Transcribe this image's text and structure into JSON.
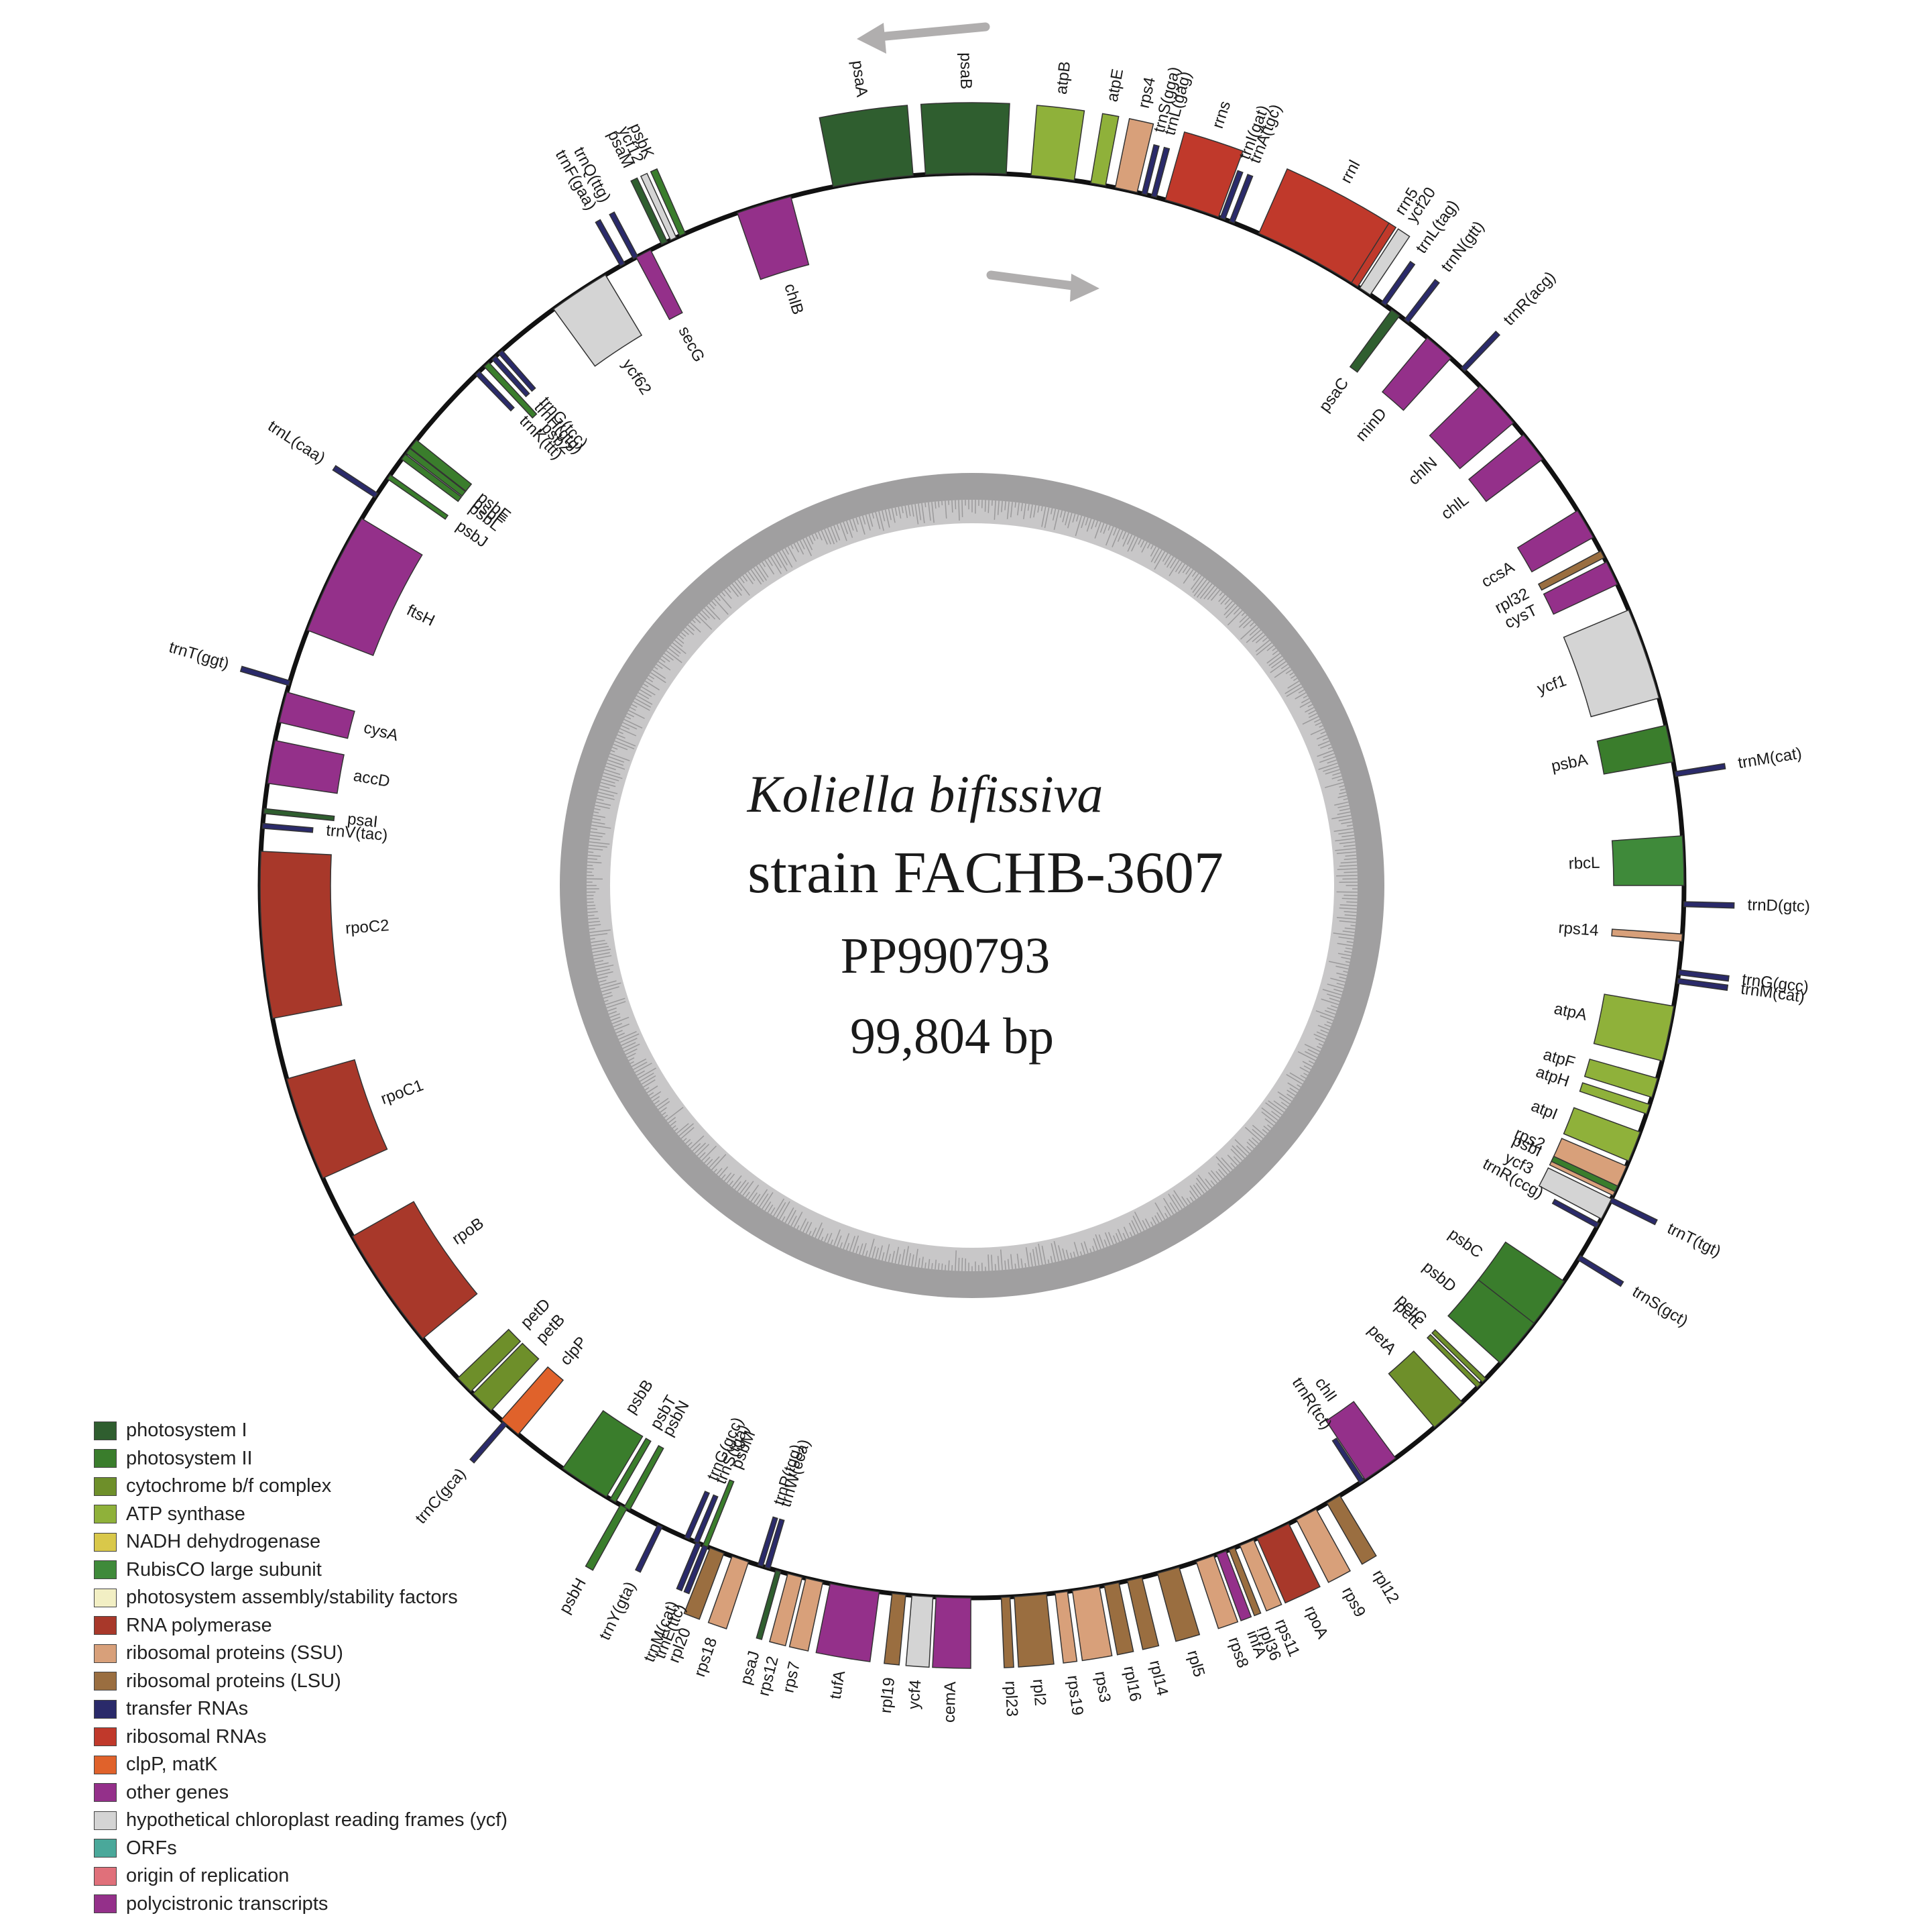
{
  "title": {
    "species": "Koliella bifissiva",
    "strain": "strain FACHB-3607",
    "accession": "PP990793",
    "length": "99,804 bp"
  },
  "colors": {
    "photosystem_I": "#2f5e2f",
    "photosystem_II": "#3a7d2c",
    "cytochrome": "#6e8f2a",
    "atp": "#8fb13a",
    "rubisco": "#3f8a3a",
    "rna_pol": "#a8382a",
    "ssu": "#d8a07a",
    "lsu": "#9a6e40",
    "trna": "#2a2a6a",
    "rrna": "#c0392b",
    "clp": "#e0622b",
    "other": "#94308a",
    "ycf": "#d4d4d4"
  },
  "legend": [
    {
      "label": "photosystem I",
      "color": "#2f5e2f"
    },
    {
      "label": "photosystem II",
      "color": "#3a7d2c"
    },
    {
      "label": "cytochrome b/f complex",
      "color": "#6e8f2a"
    },
    {
      "label": "ATP synthase",
      "color": "#8fb13a"
    },
    {
      "label": "NADH dehydrogenase",
      "color": "#d9c84a"
    },
    {
      "label": "RubisCO large subunit",
      "color": "#3f8a3a"
    },
    {
      "label": "photosystem assembly/stability factors",
      "color": "#f2efc4"
    },
    {
      "label": "RNA polymerase",
      "color": "#a8382a"
    },
    {
      "label": "ribosomal proteins (SSU)",
      "color": "#d8a07a"
    },
    {
      "label": "ribosomal proteins (LSU)",
      "color": "#9a6e40"
    },
    {
      "label": "transfer RNAs",
      "color": "#2a2a6a"
    },
    {
      "label": "ribosomal RNAs",
      "color": "#c0392b"
    },
    {
      "label": "clpP, matK",
      "color": "#e0622b"
    },
    {
      "label": "other genes",
      "color": "#94308a"
    },
    {
      "label": "hypothetical chloroplast reading frames (ycf)",
      "color": "#d4d4d4"
    },
    {
      "label": "ORFs",
      "color": "#4aa89a"
    },
    {
      "label": "origin of replication",
      "color": "#e0707a"
    },
    {
      "label": "polycistronic transcripts",
      "color": "#94308a"
    }
  ],
  "genes": [
    {
      "name": "psbK",
      "a": 336.0,
      "w": 0.5,
      "side": "out",
      "cat": "photosystem_II"
    },
    {
      "name": "ycf12",
      "a": 335.2,
      "w": 0.5,
      "side": "out",
      "cat": "ycf"
    },
    {
      "name": "psaM",
      "a": 334.4,
      "w": 0.5,
      "side": "out",
      "cat": "photosystem_I"
    },
    {
      "name": "trnQ(ttg)",
      "a": 331.8,
      "w": 0.4,
      "side": "out",
      "cat": "trna"
    },
    {
      "name": "trnF(gaa)",
      "a": 330.6,
      "w": 0.4,
      "side": "out",
      "cat": "trna"
    },
    {
      "name": "secG",
      "a": 332.5,
      "w": 1.3,
      "side": "in",
      "cat": "other"
    },
    {
      "name": "ycf62",
      "a": 326.5,
      "w": 5.0,
      "side": "in",
      "cat": "ycf"
    },
    {
      "name": "chlB",
      "a": 343.0,
      "w": 4.5,
      "side": "in",
      "cat": "other"
    },
    {
      "name": "psaA",
      "a": 352.0,
      "w": 6.5,
      "side": "out",
      "cat": "photosystem_I"
    },
    {
      "name": "psaB",
      "a": 359.5,
      "w": 6.5,
      "side": "out",
      "cat": "photosystem_I"
    },
    {
      "name": "atpB",
      "a": 6.5,
      "w": 3.5,
      "side": "out",
      "cat": "atp"
    },
    {
      "name": "atpE",
      "a": 10.2,
      "w": 1.2,
      "side": "out",
      "cat": "atp"
    },
    {
      "name": "rps4",
      "a": 12.5,
      "w": 1.8,
      "side": "out",
      "cat": "ssu"
    },
    {
      "name": "trnS(gga)",
      "a": 14.0,
      "w": 0.4,
      "side": "out",
      "cat": "trna"
    },
    {
      "name": "trnL(gag)",
      "a": 14.8,
      "w": 0.4,
      "side": "out",
      "cat": "trna"
    },
    {
      "name": "rrns",
      "a": 18.0,
      "w": 4.5,
      "side": "out",
      "cat": "rrna"
    },
    {
      "name": "trnI(gat)",
      "a": 20.6,
      "w": 0.4,
      "side": "out",
      "cat": "trna"
    },
    {
      "name": "trnA(tgc)",
      "a": 21.4,
      "w": 0.4,
      "side": "out",
      "cat": "trna"
    },
    {
      "name": "rrnl",
      "a": 28.0,
      "w": 8.5,
      "side": "out",
      "cat": "rrna"
    },
    {
      "name": "rrn5",
      "a": 32.5,
      "w": 0.6,
      "side": "out",
      "cat": "rrna"
    },
    {
      "name": "ycf20",
      "a": 33.5,
      "w": 1.0,
      "side": "out",
      "cat": "ycf"
    },
    {
      "name": "trnL(tag)",
      "a": 35.3,
      "w": 0.4,
      "side": "out",
      "cat": "trna"
    },
    {
      "name": "psaC",
      "a": 36.5,
      "w": 0.8,
      "side": "in",
      "cat": "photosystem_I"
    },
    {
      "name": "trnN(gtt)",
      "a": 37.6,
      "w": 0.4,
      "side": "out",
      "cat": "trna"
    },
    {
      "name": "minD",
      "a": 41.0,
      "w": 2.5,
      "side": "in",
      "cat": "other"
    },
    {
      "name": "trnR(acg)",
      "a": 43.6,
      "w": 0.4,
      "side": "out",
      "cat": "trna"
    },
    {
      "name": "chlN",
      "a": 47.5,
      "w": 4.0,
      "side": "in",
      "cat": "other"
    },
    {
      "name": "chlL",
      "a": 52.0,
      "w": 2.5,
      "side": "in",
      "cat": "other"
    },
    {
      "name": "ccsA",
      "a": 59.5,
      "w": 2.5,
      "side": "in",
      "cat": "other"
    },
    {
      "name": "rpl32",
      "a": 62.3,
      "w": 0.6,
      "side": "in",
      "cat": "lsu"
    },
    {
      "name": "cysT",
      "a": 64.0,
      "w": 2.0,
      "side": "in",
      "cat": "other"
    },
    {
      "name": "ycf1",
      "a": 71.0,
      "w": 7.5,
      "side": "in",
      "cat": "ycf"
    },
    {
      "name": "psbA",
      "a": 78.5,
      "w": 3.0,
      "side": "in",
      "cat": "photosystem_II"
    },
    {
      "name": "trnM(cat)",
      "a": 81.0,
      "w": 0.4,
      "side": "out",
      "cat": "trna"
    },
    {
      "name": "rbcL",
      "a": 88.0,
      "w": 4.0,
      "side": "in",
      "cat": "rubisco"
    },
    {
      "name": "trnD(gtc)",
      "a": 91.5,
      "w": 0.4,
      "side": "out",
      "cat": "trna"
    },
    {
      "name": "rps14",
      "a": 94.2,
      "w": 0.6,
      "side": "in",
      "cat": "ssu"
    },
    {
      "name": "trnG(gcc)",
      "a": 97.0,
      "w": 0.4,
      "side": "out",
      "cat": "trna"
    },
    {
      "name": "trnM(cat)",
      "a": 97.7,
      "w": 0.4,
      "side": "out",
      "cat": "trna"
    },
    {
      "name": "atpA",
      "a": 102.0,
      "w": 4.5,
      "side": "in",
      "cat": "atp"
    },
    {
      "name": "atpF",
      "a": 106.5,
      "w": 1.6,
      "side": "in",
      "cat": "atp"
    },
    {
      "name": "atpH",
      "a": 108.3,
      "w": 0.8,
      "side": "in",
      "cat": "atp"
    },
    {
      "name": "atpI",
      "a": 111.5,
      "w": 2.5,
      "side": "in",
      "cat": "atp"
    },
    {
      "name": "rps2",
      "a": 114.5,
      "w": 2.6,
      "side": "in",
      "cat": "ssu"
    },
    {
      "name": "trnT(tgt)",
      "a": 116.2,
      "w": 0.4,
      "side": "out",
      "cat": "trna"
    },
    {
      "name": "psbI",
      "a": 115.2,
      "w": 0.5,
      "side": "in",
      "cat": "photosystem_II"
    },
    {
      "name": "ycf3",
      "a": 117.0,
      "w": 1.8,
      "side": "in",
      "cat": "ycf"
    },
    {
      "name": "trnR(ccg)",
      "a": 118.5,
      "w": 0.4,
      "side": "in",
      "cat": "trna"
    },
    {
      "name": "trnS(gct)",
      "a": 121.5,
      "w": 0.4,
      "side": "out",
      "cat": "trna"
    },
    {
      "name": "psbC",
      "a": 126.0,
      "w": 4.5,
      "side": "in",
      "cat": "photosystem_II"
    },
    {
      "name": "psbD",
      "a": 130.0,
      "w": 4.2,
      "side": "in",
      "cat": "photosystem_II"
    },
    {
      "name": "petG",
      "a": 134.0,
      "w": 0.4,
      "side": "in",
      "cat": "cytochrome"
    },
    {
      "name": "petL",
      "a": 134.6,
      "w": 0.4,
      "side": "in",
      "cat": "cytochrome"
    },
    {
      "name": "petA",
      "a": 138.0,
      "w": 3.0,
      "side": "in",
      "cat": "cytochrome"
    },
    {
      "name": "chlI",
      "a": 145.0,
      "w": 3.0,
      "side": "in",
      "cat": "other"
    },
    {
      "name": "trnR(tct)",
      "a": 146.8,
      "w": 0.4,
      "side": "in",
      "cat": "trna"
    },
    {
      "name": "rpl12",
      "a": 149.5,
      "w": 1.2,
      "side": "out",
      "cat": "lsu"
    },
    {
      "name": "rps9",
      "a": 152.0,
      "w": 1.8,
      "side": "out",
      "cat": "ssu"
    },
    {
      "name": "rpoA",
      "a": 155.0,
      "w": 2.8,
      "side": "out",
      "cat": "rna_pol"
    },
    {
      "name": "rps11",
      "a": 157.3,
      "w": 1.2,
      "side": "out",
      "cat": "ssu"
    },
    {
      "name": "rpl36",
      "a": 158.6,
      "w": 0.5,
      "side": "out",
      "cat": "lsu"
    },
    {
      "name": "infA",
      "a": 159.5,
      "w": 0.8,
      "side": "out",
      "cat": "other"
    },
    {
      "name": "rps8",
      "a": 160.9,
      "w": 1.5,
      "side": "out",
      "cat": "ssu"
    },
    {
      "name": "rpl5",
      "a": 164.0,
      "w": 1.8,
      "side": "out",
      "cat": "lsu"
    },
    {
      "name": "rpl14",
      "a": 166.8,
      "w": 1.2,
      "side": "out",
      "cat": "lsu"
    },
    {
      "name": "rpl16",
      "a": 168.7,
      "w": 1.2,
      "side": "out",
      "cat": "lsu"
    },
    {
      "name": "rps3",
      "a": 170.8,
      "w": 2.2,
      "side": "out",
      "cat": "ssu"
    },
    {
      "name": "rps19",
      "a": 172.8,
      "w": 1.0,
      "side": "out",
      "cat": "ssu"
    },
    {
      "name": "rpl2",
      "a": 175.3,
      "w": 2.6,
      "side": "out",
      "cat": "lsu"
    },
    {
      "name": "rpl23",
      "a": 177.3,
      "w": 0.7,
      "side": "out",
      "cat": "lsu"
    },
    {
      "name": "cemA",
      "a": 181.5,
      "w": 2.8,
      "side": "out",
      "cat": "other"
    },
    {
      "name": "ycf4",
      "a": 184.0,
      "w": 1.7,
      "side": "out",
      "cat": "ycf"
    },
    {
      "name": "rpl19",
      "a": 185.9,
      "w": 1.1,
      "side": "out",
      "cat": "lsu"
    },
    {
      "name": "tufA",
      "a": 189.5,
      "w": 4.0,
      "side": "out",
      "cat": "other"
    },
    {
      "name": "rps7",
      "a": 192.8,
      "w": 1.4,
      "side": "out",
      "cat": "ssu"
    },
    {
      "name": "rps12",
      "a": 194.4,
      "w": 1.2,
      "side": "out",
      "cat": "ssu"
    },
    {
      "name": "psaJ",
      "a": 195.8,
      "w": 0.4,
      "side": "out",
      "cat": "photosystem_I"
    },
    {
      "name": "rps18",
      "a": 199.0,
      "w": 1.4,
      "side": "out",
      "cat": "ssu"
    },
    {
      "name": "rpl20",
      "a": 201.0,
      "w": 1.2,
      "side": "out",
      "cat": "lsu"
    },
    {
      "name": "trnE(ttc)",
      "a": 202.0,
      "w": 0.4,
      "side": "out",
      "cat": "trna"
    },
    {
      "name": "trnM(cat)",
      "a": 202.6,
      "w": 0.4,
      "side": "out",
      "cat": "trna"
    },
    {
      "name": "trnW(cca)",
      "a": 196.7,
      "w": 0.4,
      "side": "in",
      "cat": "trna"
    },
    {
      "name": "trnP(tgg)",
      "a": 197.3,
      "w": 0.4,
      "side": "in",
      "cat": "trna"
    },
    {
      "name": "psbM",
      "a": 202.0,
      "w": 0.4,
      "side": "in",
      "cat": "photosystem_II"
    },
    {
      "name": "trnS(tga)",
      "a": 202.8,
      "w": 0.4,
      "side": "in",
      "cat": "trna"
    },
    {
      "name": "trnG(gcc)",
      "a": 203.6,
      "w": 0.4,
      "side": "in",
      "cat": "trna"
    },
    {
      "name": "trnY(gta)",
      "a": 206.0,
      "w": 0.4,
      "side": "out",
      "cat": "trna"
    },
    {
      "name": "psbN",
      "a": 209.0,
      "w": 0.5,
      "side": "in",
      "cat": "photosystem_II"
    },
    {
      "name": "psbH",
      "a": 209.3,
      "w": 0.6,
      "side": "out",
      "cat": "photosystem_II"
    },
    {
      "name": "psbT",
      "a": 210.3,
      "w": 0.5,
      "side": "in",
      "cat": "photosystem_II"
    },
    {
      "name": "psbB",
      "a": 213.0,
      "w": 4.2,
      "side": "in",
      "cat": "photosystem_II"
    },
    {
      "name": "trnC(gca)",
      "a": 221.0,
      "w": 0.4,
      "side": "out",
      "cat": "trna"
    },
    {
      "name": "clpP",
      "a": 220.5,
      "w": 1.8,
      "side": "in",
      "cat": "clp"
    },
    {
      "name": "petB",
      "a": 223.5,
      "w": 2.0,
      "side": "in",
      "cat": "cytochrome"
    },
    {
      "name": "petD",
      "a": 225.5,
      "w": 1.5,
      "side": "in",
      "cat": "cytochrome"
    },
    {
      "name": "rpoB",
      "a": 235.5,
      "w": 10.0,
      "side": "in",
      "cat": "rna_pol"
    },
    {
      "name": "rpoC1",
      "a": 250.0,
      "w": 8.5,
      "side": "in",
      "cat": "rna_pol"
    },
    {
      "name": "rpoC2",
      "a": 266.0,
      "w": 13.5,
      "side": "in",
      "cat": "rna_pol"
    },
    {
      "name": "trnV(tac)",
      "a": 274.8,
      "w": 0.4,
      "side": "in",
      "cat": "trna"
    },
    {
      "name": "psaI",
      "a": 276.0,
      "w": 0.4,
      "side": "in",
      "cat": "photosystem_I"
    },
    {
      "name": "accD",
      "a": 280.0,
      "w": 3.5,
      "side": "in",
      "cat": "other"
    },
    {
      "name": "cysA",
      "a": 284.5,
      "w": 2.5,
      "side": "in",
      "cat": "other"
    },
    {
      "name": "trnT(ggt)",
      "a": 286.5,
      "w": 0.4,
      "side": "out",
      "cat": "trna"
    },
    {
      "name": "ftsH",
      "a": 296.0,
      "w": 10.0,
      "side": "in",
      "cat": "other"
    },
    {
      "name": "trnL(caa)",
      "a": 303.2,
      "w": 0.4,
      "side": "out",
      "cat": "trna"
    },
    {
      "name": "psbJ",
      "a": 305.0,
      "w": 0.4,
      "side": "in",
      "cat": "photosystem_II"
    },
    {
      "name": "psbL",
      "a": 307.0,
      "w": 0.5,
      "side": "in",
      "cat": "photosystem_II"
    },
    {
      "name": "psbF",
      "a": 307.6,
      "w": 0.5,
      "side": "in",
      "cat": "photosystem_II"
    },
    {
      "name": "psbE",
      "a": 308.3,
      "w": 0.8,
      "side": "in",
      "cat": "photosystem_II"
    },
    {
      "name": "trnK(ttt)",
      "a": 316.0,
      "w": 0.4,
      "side": "in",
      "cat": "trna"
    },
    {
      "name": "psbZ",
      "a": 317.0,
      "w": 0.5,
      "side": "in",
      "cat": "photosystem_II"
    },
    {
      "name": "trnH(gtg)",
      "a": 317.8,
      "w": 0.4,
      "side": "in",
      "cat": "trna"
    },
    {
      "name": "trnG(tcc)",
      "a": 318.5,
      "w": 0.4,
      "side": "in",
      "cat": "trna"
    }
  ]
}
